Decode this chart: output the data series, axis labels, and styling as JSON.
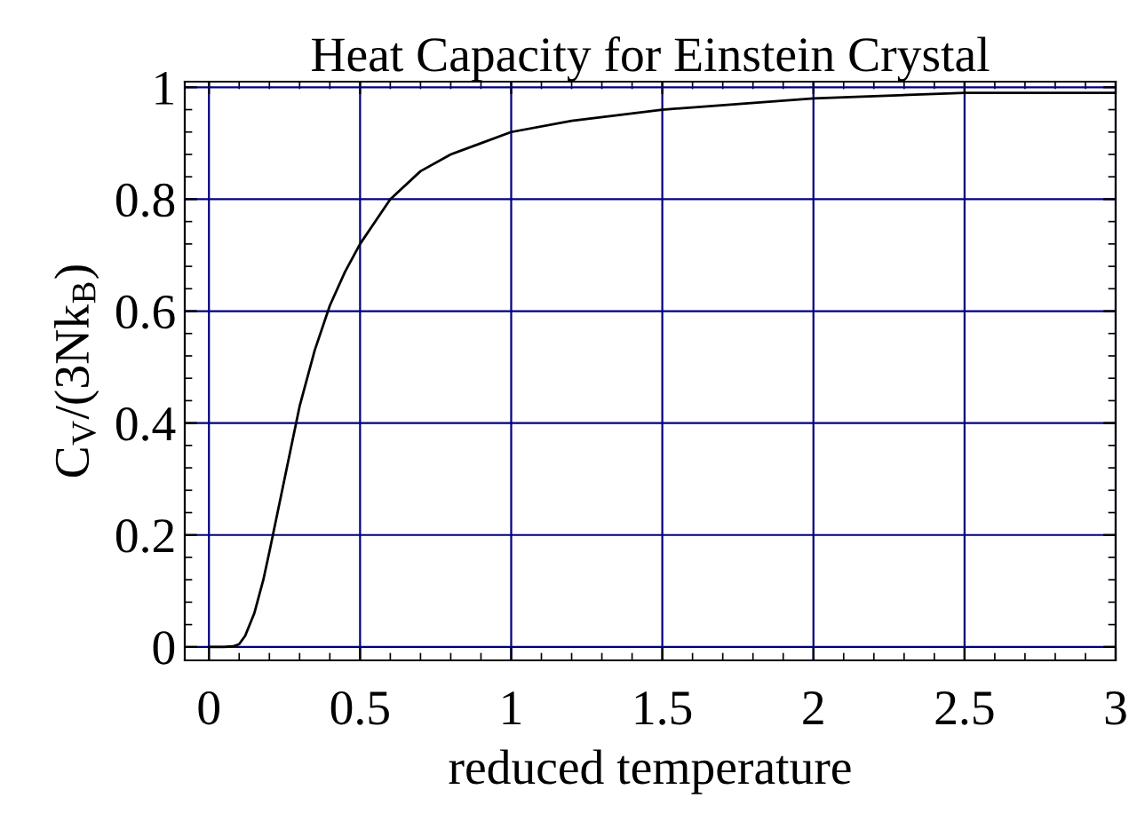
{
  "chart_data": {
    "type": "line",
    "title": "Heat Capacity for Einstein Crystal",
    "xlabel": "reduced temperature",
    "ylabel": "C$_{V}$/(3Nk$_{B}$)",
    "series": [
      {
        "color": "#000000",
        "x": [
          0,
          0.05,
          0.08,
          0.1,
          0.12,
          0.15,
          0.18,
          0.2,
          0.25,
          0.3,
          0.35,
          0.4,
          0.45,
          0.5,
          0.6,
          0.7,
          0.8,
          0.9,
          1.0,
          1.2,
          1.5,
          2.0,
          2.5,
          3.0
        ],
        "values": [
          0,
          0,
          0.001,
          0.005,
          0.02,
          0.06,
          0.12,
          0.17,
          0.3,
          0.43,
          0.53,
          0.61,
          0.67,
          0.72,
          0.8,
          0.85,
          0.88,
          0.9,
          0.92,
          0.94,
          0.96,
          0.98,
          0.99,
          0.99
        ]
      }
    ],
    "xlim": [
      -0.08,
      3.0
    ],
    "ylim": [
      -0.024,
      1.01
    ],
    "xticks": [
      0,
      0.5,
      1,
      1.5,
      2,
      2.5,
      3
    ],
    "yticks": [
      0,
      0.2,
      0.4,
      0.6,
      0.8,
      1
    ],
    "grid": true,
    "marker": "none",
    "line_style": "solid"
  }
}
